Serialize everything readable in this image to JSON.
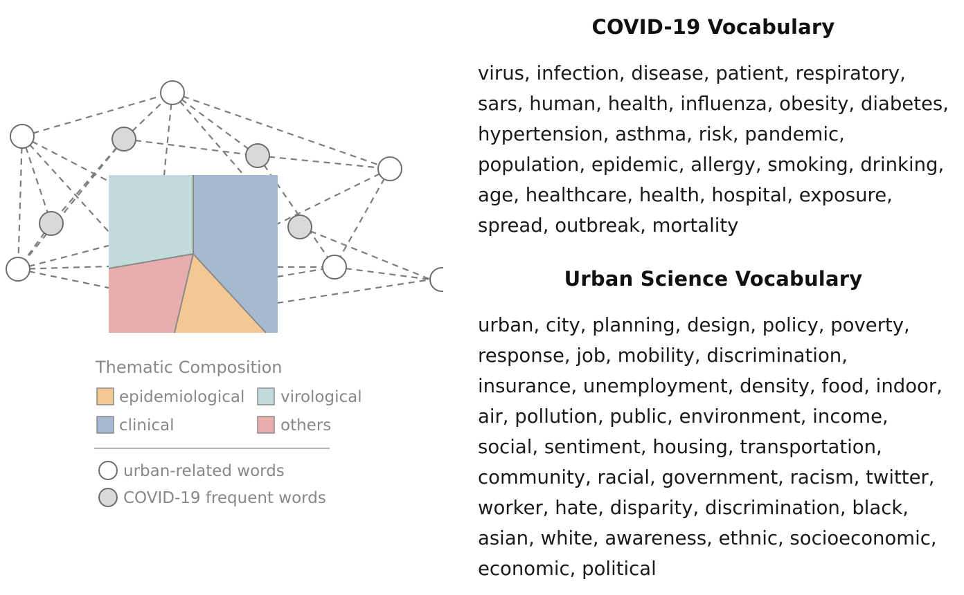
{
  "legend": {
    "title": "Thematic Composition",
    "categories": [
      {
        "label": "epidemiological",
        "color": "#f3c893"
      },
      {
        "label": "virological",
        "color": "#c1dcda"
      },
      {
        "label": "clinical",
        "color": "#a7b9d1"
      },
      {
        "label": "others",
        "color": "#e8aeae"
      }
    ],
    "node_types": [
      {
        "label": "urban-related words",
        "fill": "#ffffff"
      },
      {
        "label": "COVID-19 frequent words",
        "fill": "#d9d9d9"
      }
    ]
  },
  "covid_vocabulary": {
    "heading": "COVID-19 Vocabulary",
    "text": "virus, infection, disease, patient, respiratory,\nsars, human, health, influenza, obesity, diabetes,\nhypertension, asthma, risk, pandemic,\npopulation, epidemic, allergy, smoking, drinking,\nage, healthcare, health, hospital, exposure,\nspread, outbreak,  mortality"
  },
  "urban_vocabulary": {
    "heading": "Urban Science Vocabulary",
    "text": "urban, city, planning, design, policy, poverty,\nresponse, job, mobility, discrimination,\ninsurance, unemployment, density, food, indoor,\nair, pollution, public, environment, income,\nsocial, sentiment, housing, transportation,\ncommunity, racial, government, racism, twitter,\nworker, hate, disparity, discrimination, black,\nasian, white, awareness, ethnic, socioeconomic,\neconomic, political"
  }
}
